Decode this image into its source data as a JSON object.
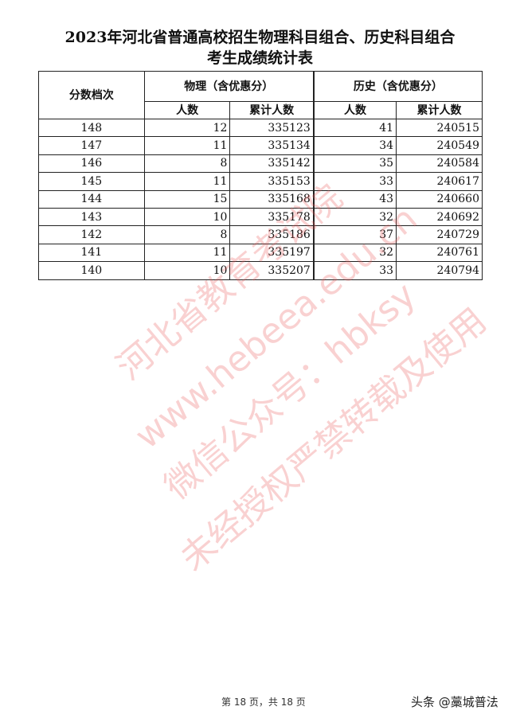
{
  "title_line1": "2023年河北省普通高校招生物理科目组合、历史科目组合",
  "title_line2": "考生成绩统计表",
  "headers": {
    "score": "分数档次",
    "physics": "物理（含优惠分）",
    "history": "历史（含优惠分）",
    "count": "人数",
    "cumulative": "累计人数"
  },
  "rows": [
    {
      "score": "148",
      "p_count": "12",
      "p_cum": "335123",
      "h_count": "41",
      "h_cum": "240515"
    },
    {
      "score": "147",
      "p_count": "11",
      "p_cum": "335134",
      "h_count": "34",
      "h_cum": "240549"
    },
    {
      "score": "146",
      "p_count": "8",
      "p_cum": "335142",
      "h_count": "35",
      "h_cum": "240584"
    },
    {
      "score": "145",
      "p_count": "11",
      "p_cum": "335153",
      "h_count": "33",
      "h_cum": "240617"
    },
    {
      "score": "144",
      "p_count": "15",
      "p_cum": "335168",
      "h_count": "43",
      "h_cum": "240660"
    },
    {
      "score": "143",
      "p_count": "10",
      "p_cum": "335178",
      "h_count": "32",
      "h_cum": "240692"
    },
    {
      "score": "142",
      "p_count": "8",
      "p_cum": "335186",
      "h_count": "37",
      "h_cum": "240729"
    },
    {
      "score": "141",
      "p_count": "11",
      "p_cum": "335197",
      "h_count": "32",
      "h_cum": "240761"
    },
    {
      "score": "140",
      "p_count": "10",
      "p_cum": "335207",
      "h_count": "33",
      "h_cum": "240794"
    }
  ],
  "watermark": [
    "河北省教育考试院",
    "www.hebeea.edu.cn",
    "微信公众号：hbksy",
    "未经授权严禁转载及使用"
  ],
  "footer": "第 18 页，共 18 页",
  "brand": "头条 @藁城普法",
  "colors": {
    "watermark": "#eb5a5a"
  }
}
